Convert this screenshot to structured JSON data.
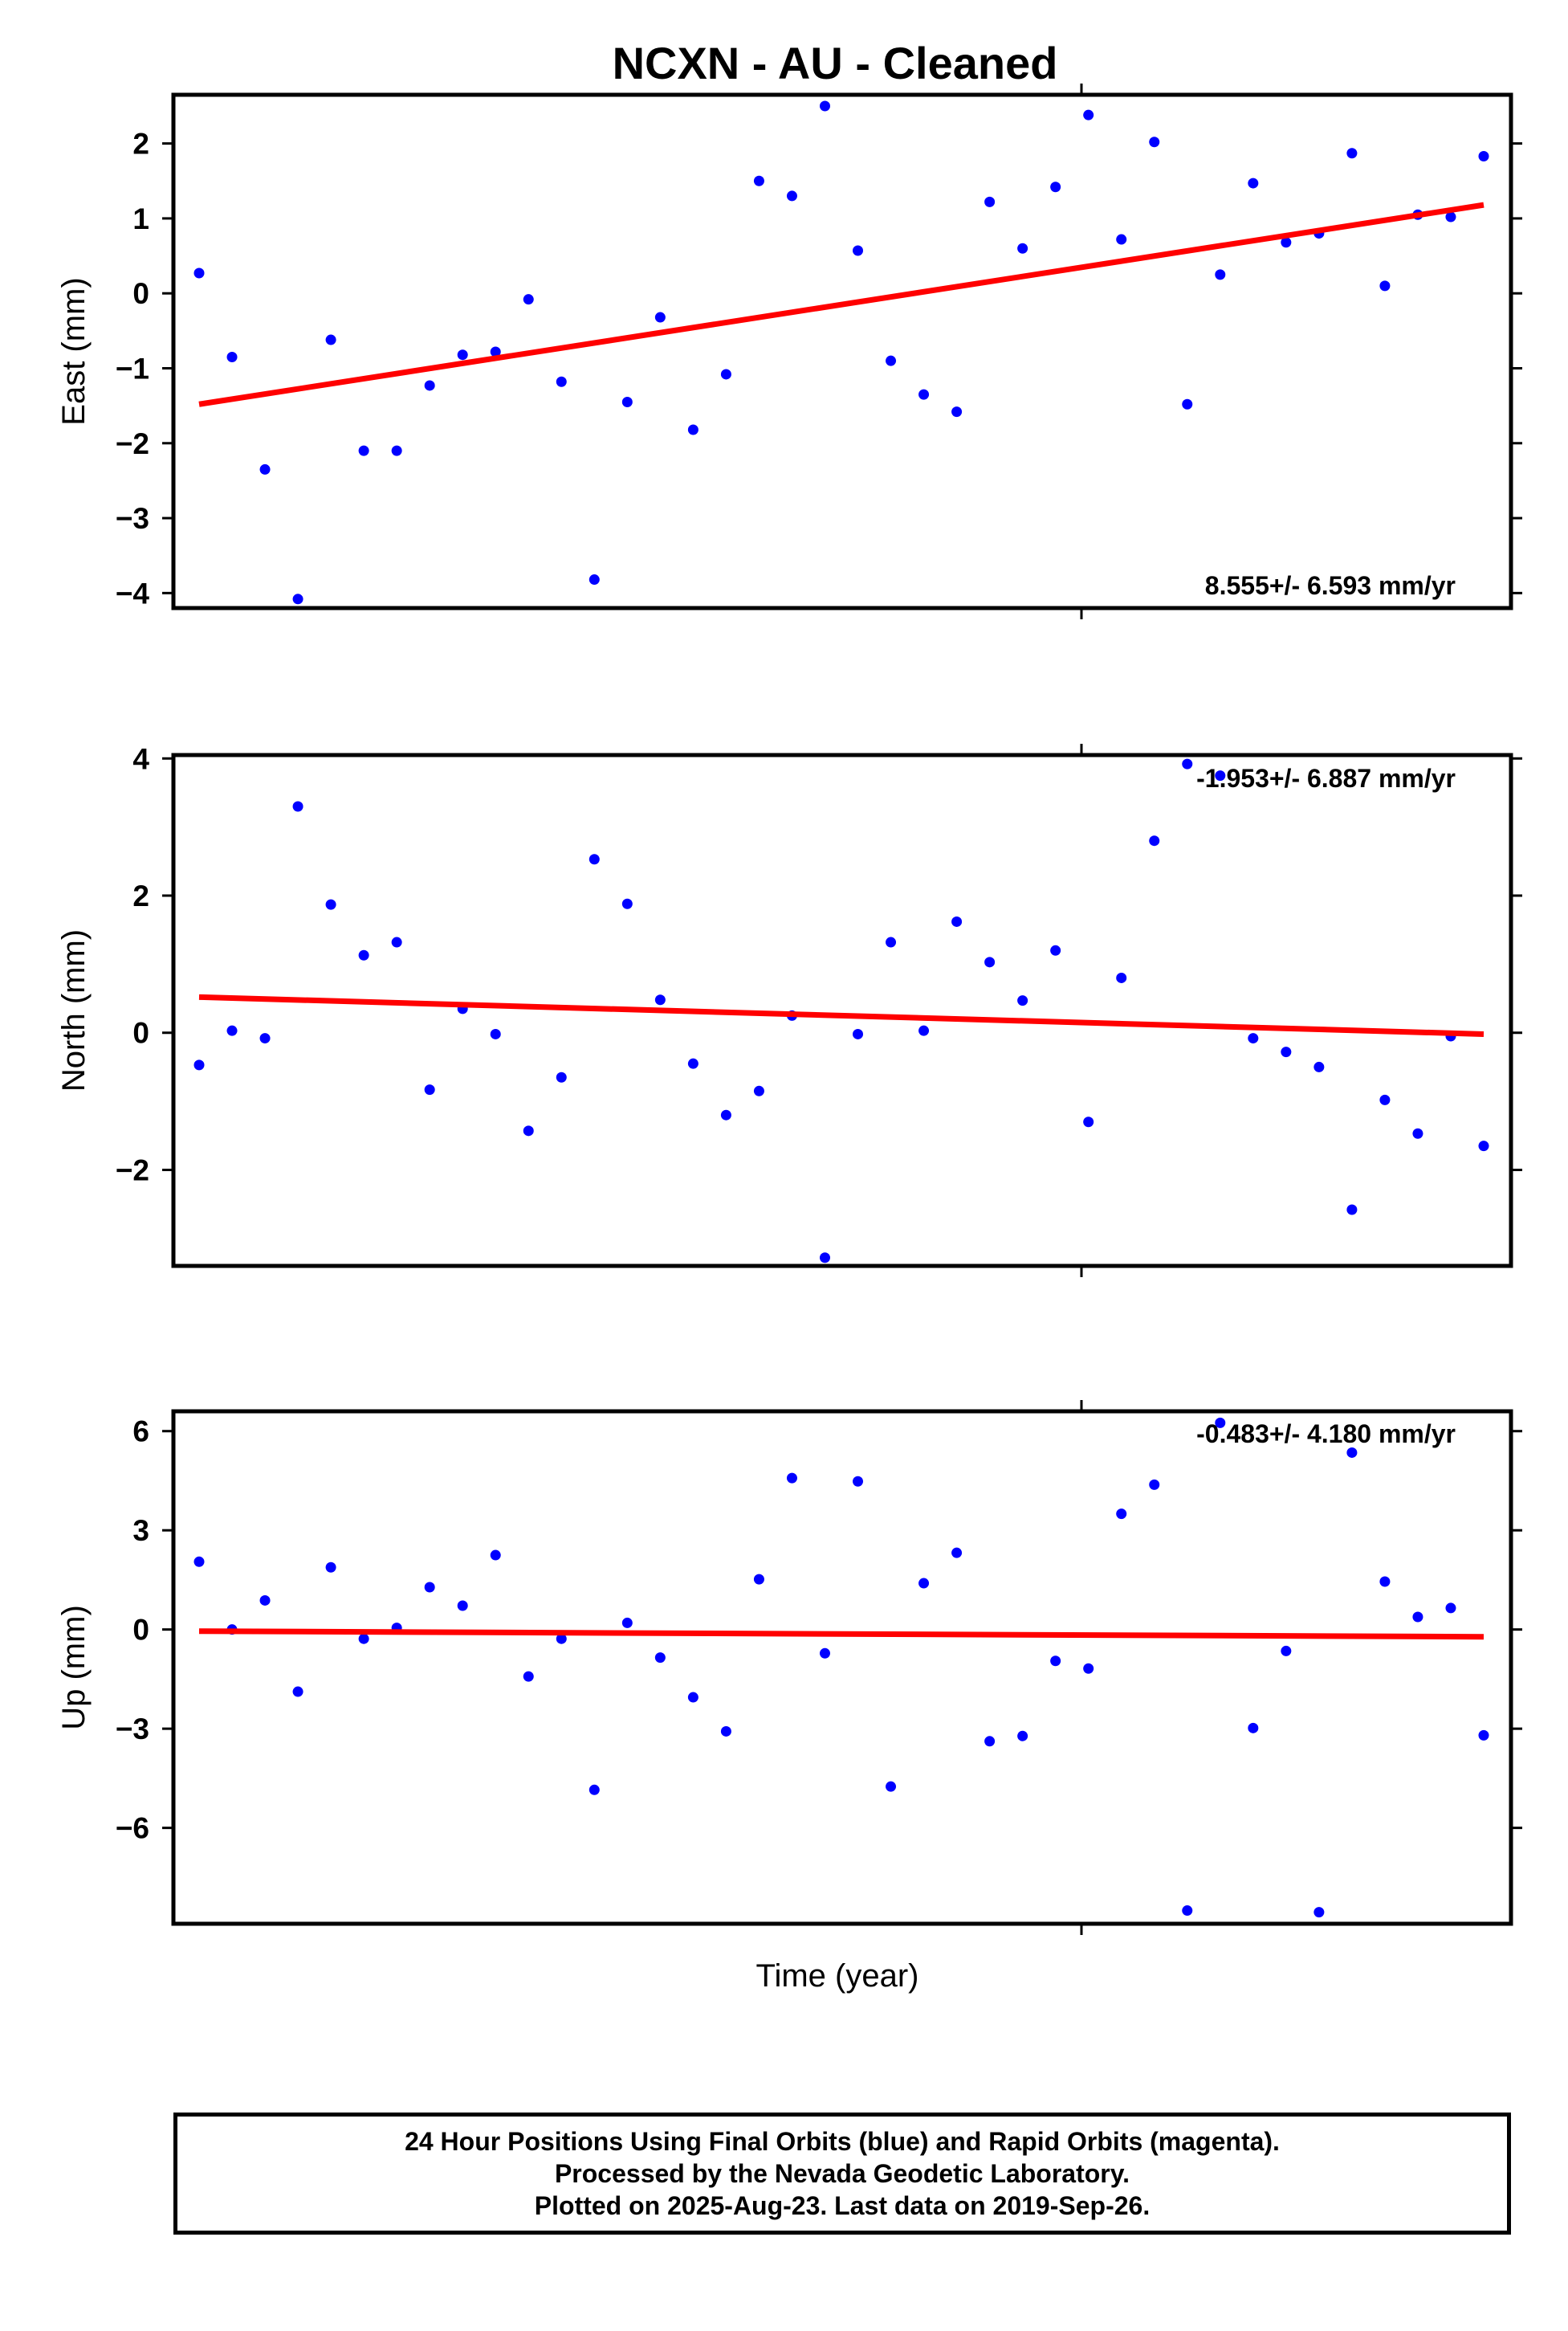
{
  "title": "NCXN  - AU - Cleaned",
  "xlabel": "Time (year)",
  "colors": {
    "points": "#0000ff",
    "fit": "#ff0000",
    "frame": "#000000"
  },
  "footer": {
    "line1": "24 Hour Positions Using Final Orbits (blue) and Rapid Orbits (magenta).",
    "line2": "Processed by the Nevada Geodetic Laboratory.",
    "line3": "Plotted on 2025-Aug-23. Last data on 2019-Sep-26."
  },
  "chart_data": [
    {
      "type": "scatter",
      "ylabel": "East (mm)",
      "rate_text": "8.555+/- 6.593 mm/yr",
      "ylim": [
        -4.2,
        2.65
      ],
      "yticks": [
        2,
        1,
        0,
        -1,
        -2,
        -3,
        -4
      ],
      "values": [
        0.27,
        -0.85,
        -2.35,
        -4.08,
        -0.62,
        -2.1,
        -2.1,
        -1.23,
        -0.82,
        -0.78,
        -0.08,
        -1.18,
        -3.82,
        -1.45,
        -0.32,
        -1.82,
        -1.08,
        1.5,
        1.3,
        2.5,
        0.57,
        -0.9,
        -1.35,
        -1.58,
        1.22,
        0.6,
        1.42,
        2.38,
        0.72,
        2.02,
        -1.48,
        0.25,
        1.47,
        0.68,
        0.8,
        1.87,
        0.1,
        1.05,
        1.02,
        1.83
      ],
      "fit": [
        -1.48,
        1.18
      ]
    },
    {
      "type": "scatter",
      "ylabel": "North (mm)",
      "rate_text": "-1.953+/- 6.887 mm/yr",
      "ylim": [
        -3.4,
        4.05
      ],
      "yticks": [
        4,
        2,
        0,
        -2
      ],
      "values": [
        -0.47,
        0.03,
        -0.08,
        3.3,
        1.87,
        1.13,
        1.32,
        -0.83,
        0.35,
        -0.02,
        -1.43,
        -0.65,
        2.53,
        1.88,
        0.48,
        -0.45,
        -1.2,
        -0.85,
        0.25,
        -3.28,
        -0.02,
        1.32,
        0.03,
        1.62,
        1.03,
        0.47,
        1.2,
        -1.3,
        0.8,
        2.8,
        3.92,
        3.75,
        -0.08,
        -0.28,
        -0.5,
        -2.58,
        -0.98,
        -1.47,
        -0.05,
        -1.65
      ],
      "fit": [
        0.52,
        -0.02
      ]
    },
    {
      "type": "scatter",
      "ylabel": "Up (mm)",
      "rate_text": "-0.483+/- 4.180 mm/yr",
      "ylim": [
        -8.9,
        6.6
      ],
      "yticks": [
        6,
        3,
        0,
        -3,
        -6
      ],
      "values": [
        2.05,
        0.0,
        0.88,
        -1.88,
        1.88,
        -0.28,
        0.05,
        1.28,
        0.72,
        2.25,
        -1.42,
        -0.28,
        -4.85,
        0.2,
        -0.85,
        -2.05,
        -3.08,
        1.52,
        4.58,
        -0.72,
        4.48,
        -4.75,
        1.4,
        2.32,
        -3.38,
        -3.22,
        -0.95,
        -1.18,
        3.5,
        4.38,
        -8.5,
        6.25,
        -2.98,
        -0.65,
        -8.55,
        5.35,
        1.45,
        0.38,
        0.65,
        -3.2
      ],
      "fit": [
        -0.05,
        -0.22
      ]
    }
  ]
}
